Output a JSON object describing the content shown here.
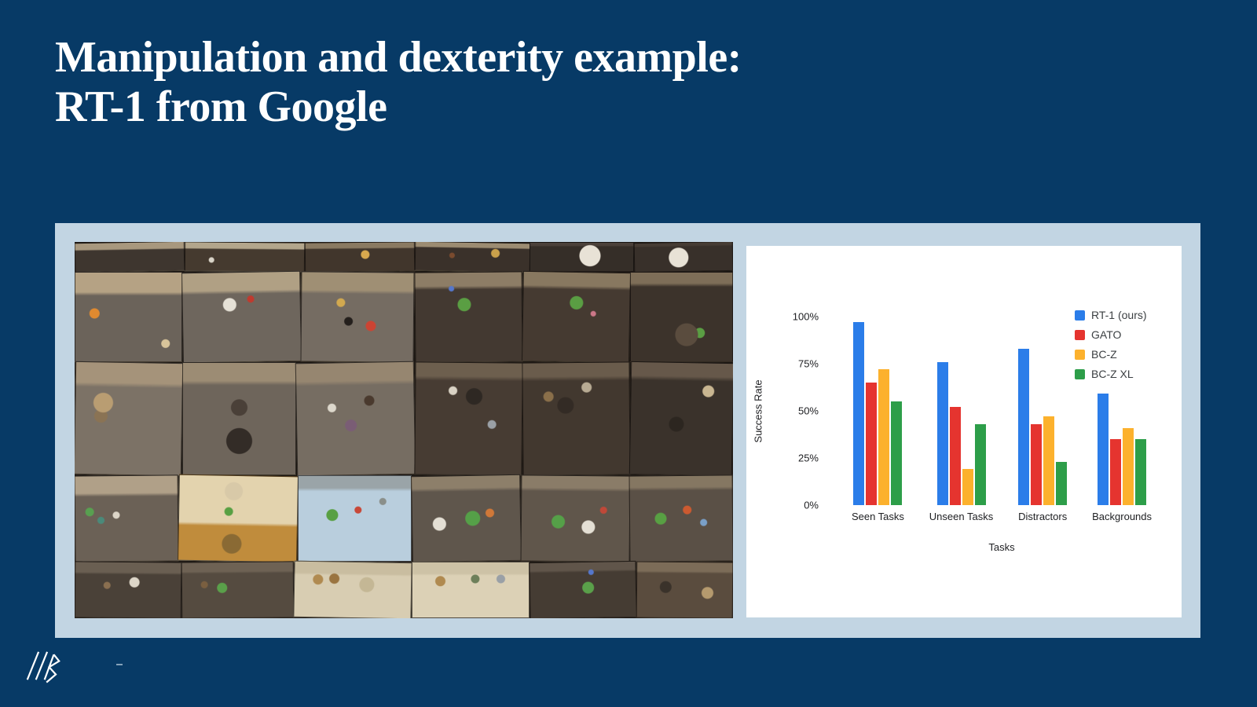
{
  "slide": {
    "title_line1": "Manipulation and dexterity example:",
    "title_line2": "RT-1 from Google",
    "background_color": "#073a66",
    "panel_color": "#c2d5e3"
  },
  "photo_collage": {
    "alt": "Mosaic of overhead photos of robot manipulation scenes in an office kitchen: countertops and drawers with snack bags, cans, bowls, fruit, utensils, and a robot arm",
    "rows": [
      {
        "h": 8,
        "tiles": [
          {
            "f": "#a8987e",
            "c": "#3e362f",
            "s": 22,
            "w": 1,
            "a": []
          },
          {
            "f": "#b3a68c",
            "c": "#453a2f",
            "s": 20,
            "w": 1.1,
            "a": [
              [
                "#d9d4c8",
                22,
                62,
                3
              ]
            ]
          },
          {
            "f": "#8a7a62",
            "c": "#41362c",
            "s": 18,
            "w": 1,
            "a": [
              [
                "#d9a94e",
                55,
                42,
                5
              ]
            ]
          },
          {
            "f": "#9c8c72",
            "c": "#3a312a",
            "s": 16,
            "w": 1.05,
            "a": [
              [
                "#caa14b",
                70,
                36,
                5
              ],
              [
                "#7a4b2e",
                32,
                46,
                3
              ]
            ]
          },
          {
            "f": "#4b413a",
            "c": "#352e28",
            "s": 10,
            "w": 0.95,
            "a": [
              [
                "#e8e2d6",
                58,
                46,
                13
              ],
              [
                "#e07c2e",
                58,
                42,
                7
              ]
            ]
          },
          {
            "f": "#463c34",
            "c": "#38302a",
            "s": 10,
            "w": 0.9,
            "a": [
              [
                "#e8e2d6",
                45,
                52,
                12
              ],
              [
                "#e07c2e",
                48,
                47,
                6
              ]
            ]
          }
        ]
      },
      {
        "h": 24,
        "tiles": [
          {
            "f": "#b5a284",
            "c": "#6b635a",
            "s": 22,
            "w": 1,
            "a": [
              [
                "#e08a30",
                18,
                46,
                6
              ],
              [
                "#d8c49a",
                85,
                80,
                5
              ]
            ]
          },
          {
            "f": "#b0a084",
            "c": "#6e665d",
            "s": 20,
            "w": 1.1,
            "a": [
              [
                "#e6e1d6",
                40,
                36,
                8
              ],
              [
                "#c03a2e",
                58,
                30,
                4
              ]
            ]
          },
          {
            "f": "#9f8f74",
            "c": "#756c62",
            "s": 20,
            "w": 1.05,
            "a": [
              [
                "#241f1c",
                42,
                55,
                5
              ],
              [
                "#cc4433",
                62,
                60,
                6
              ],
              [
                "#d2a94f",
                35,
                34,
                5
              ]
            ]
          },
          {
            "f": "#8d7d66",
            "c": "#433931",
            "s": 15,
            "w": 1,
            "a": [
              [
                "#5a9e43",
                46,
                36,
                8
              ],
              [
                "#5577cc",
                34,
                18,
                3
              ]
            ]
          },
          {
            "f": "#887860",
            "c": "#453a31",
            "s": 15,
            "w": 1,
            "a": [
              [
                "#5a9e43",
                50,
                34,
                8
              ],
              [
                "#cc7788",
                66,
                46,
                3
              ]
            ]
          },
          {
            "f": "#7e6e58",
            "c": "#3c332b",
            "s": 12,
            "w": 0.95,
            "a": [
              [
                "#5a4c3e",
                55,
                70,
                14
              ],
              [
                "#5a9e43",
                68,
                68,
                6
              ]
            ]
          }
        ]
      },
      {
        "h": 30,
        "tiles": [
          {
            "f": "#a5937a",
            "c": "#7c7266",
            "s": 18,
            "w": 1,
            "a": [
              [
                "#b99d72",
                26,
                36,
                12
              ],
              [
                "#8a7354",
                24,
                48,
                8
              ]
            ]
          },
          {
            "f": "#9c8c74",
            "c": "#6e655b",
            "s": 16,
            "w": 1.05,
            "a": [
              [
                "#332c27",
                50,
                70,
                16
              ],
              [
                "#4a4038",
                50,
                40,
                10
              ]
            ]
          },
          {
            "f": "#968670",
            "c": "#766d62",
            "s": 16,
            "w": 1.1,
            "a": [
              [
                "#7a5d75",
                46,
                56,
                7
              ],
              [
                "#4a3a2e",
                62,
                34,
                6
              ],
              [
                "#ddd8cc",
                30,
                40,
                5
              ]
            ]
          },
          {
            "f": "#6d5f4e",
            "c": "#473c33",
            "s": 12,
            "w": 1,
            "a": [
              [
                "#2e2823",
                55,
                30,
                10
              ],
              [
                "#9aa0a6",
                72,
                55,
                5
              ],
              [
                "#d9d2c4",
                35,
                25,
                5
              ]
            ]
          },
          {
            "f": "#6a5c4c",
            "c": "#42382f",
            "s": 12,
            "w": 1,
            "a": [
              [
                "#332b25",
                40,
                38,
                10
              ],
              [
                "#8a6f4a",
                24,
                30,
                6
              ],
              [
                "#b8ab94",
                60,
                22,
                6
              ]
            ]
          },
          {
            "f": "#66584a",
            "c": "#3a322b",
            "s": 12,
            "w": 0.95,
            "a": [
              [
                "#c9b691",
                76,
                25,
                7
              ],
              [
                "#2c2620",
                45,
                55,
                9
              ]
            ]
          }
        ]
      },
      {
        "h": 23,
        "tiles": [
          {
            "f": "#b0a088",
            "c": "#6b6156",
            "s": 20,
            "w": 0.95,
            "a": [
              [
                "#58a050",
                14,
                42,
                5
              ],
              [
                "#4a8a7a",
                25,
                52,
                4
              ],
              [
                "#ddd6c8",
                40,
                46,
                4
              ]
            ]
          },
          {
            "f": "#e3d3ae",
            "c": "#c08c3c",
            "s": 55,
            "w": 1.1,
            "a": [
              [
                "#d8c9a8",
                46,
                18,
                11
              ],
              [
                "#58a043",
                42,
                42,
                5
              ],
              [
                "#8a6a34",
                45,
                80,
                12
              ]
            ]
          },
          {
            "f": "#9aa4a8",
            "c": "#b9cedd",
            "s": 14,
            "w": 1.05,
            "a": [
              [
                "#58a043",
                30,
                46,
                7
              ],
              [
                "#c84838",
                53,
                40,
                4
              ],
              [
                "#8a8f8a",
                75,
                30,
                4
              ]
            ]
          },
          {
            "f": "#8d7f6a",
            "c": "#5f564c",
            "s": 14,
            "w": 1,
            "a": [
              [
                "#e4dfd4",
                25,
                56,
                8
              ],
              [
                "#55a048",
                56,
                50,
                9
              ],
              [
                "#d07838",
                72,
                44,
                5
              ]
            ]
          },
          {
            "f": "#8a7c68",
            "c": "#60564b",
            "s": 14,
            "w": 1,
            "a": [
              [
                "#55a048",
                34,
                54,
                8
              ],
              [
                "#e4dfd4",
                62,
                60,
                8
              ],
              [
                "#c04838",
                76,
                40,
                4
              ]
            ]
          },
          {
            "f": "#857762",
            "c": "#5a5046",
            "s": 13,
            "w": 0.95,
            "a": [
              [
                "#58a043",
                30,
                50,
                7
              ],
              [
                "#cc5a30",
                56,
                40,
                5
              ],
              [
                "#7aa0c8",
                72,
                55,
                4
              ]
            ]
          }
        ]
      },
      {
        "h": 15,
        "tiles": [
          {
            "f": "#6a5f52",
            "c": "#4a4138",
            "s": 18,
            "w": 1,
            "a": [
              [
                "#8a6f50",
                30,
                42,
                4
              ],
              [
                "#ddd6c8",
                56,
                36,
                6
              ]
            ]
          },
          {
            "f": "#6e6254",
            "c": "#554b40",
            "s": 16,
            "w": 1.05,
            "a": [
              [
                "#5aa04a",
                36,
                46,
                6
              ],
              [
                "#7a5f40",
                20,
                40,
                4
              ]
            ]
          },
          {
            "f": "#c9bda0",
            "c": "#d8cdb2",
            "s": 20,
            "w": 1.1,
            "a": [
              [
                "#b08a50",
                20,
                32,
                6
              ],
              [
                "#9a7440",
                34,
                30,
                6
              ],
              [
                "#c4b795",
                62,
                40,
                9
              ]
            ]
          },
          {
            "f": "#cdc2a6",
            "c": "#dcd1b6",
            "s": 20,
            "w": 1.1,
            "a": [
              [
                "#b08a50",
                24,
                34,
                6
              ],
              [
                "#6d7f5a",
                54,
                30,
                5
              ],
              [
                "#9aa0a6",
                76,
                30,
                5
              ]
            ]
          },
          {
            "f": "#60554a",
            "c": "#453c33",
            "s": 14,
            "w": 1,
            "a": [
              [
                "#5aa04a",
                55,
                46,
                7
              ],
              [
                "#5577cc",
                58,
                18,
                3
              ]
            ]
          },
          {
            "f": "#7c6c58",
            "c": "#5a4c3e",
            "s": 16,
            "w": 0.9,
            "a": [
              [
                "#b59a6e",
                74,
                55,
                7
              ],
              [
                "#3a322a",
                30,
                45,
                7
              ]
            ]
          }
        ]
      }
    ]
  },
  "chart_data": {
    "type": "bar",
    "title": "",
    "xlabel": "Tasks",
    "ylabel": "Success Rate",
    "ylim": [
      0,
      100
    ],
    "yticks": [
      {
        "value": 0,
        "label": "0%"
      },
      {
        "value": 25,
        "label": "25%"
      },
      {
        "value": 50,
        "label": "50%"
      },
      {
        "value": 75,
        "label": "75%"
      },
      {
        "value": 100,
        "label": "100%"
      }
    ],
    "grid": false,
    "legend_position": "top-right",
    "categories": [
      "Seen Tasks",
      "Unseen Tasks",
      "Distractors",
      "Backgrounds"
    ],
    "series": [
      {
        "name": "RT-1 (ours)",
        "color": "#2b7de9",
        "values": [
          97,
          76,
          83,
          59
        ]
      },
      {
        "name": "GATO",
        "color": "#e5342f",
        "values": [
          65,
          52,
          43,
          35
        ]
      },
      {
        "name": "BC-Z",
        "color": "#fcb12d",
        "values": [
          72,
          19,
          47,
          41
        ]
      },
      {
        "name": "BC-Z XL",
        "color": "#2d9e49",
        "values": [
          55,
          43,
          23,
          35
        ]
      }
    ]
  }
}
